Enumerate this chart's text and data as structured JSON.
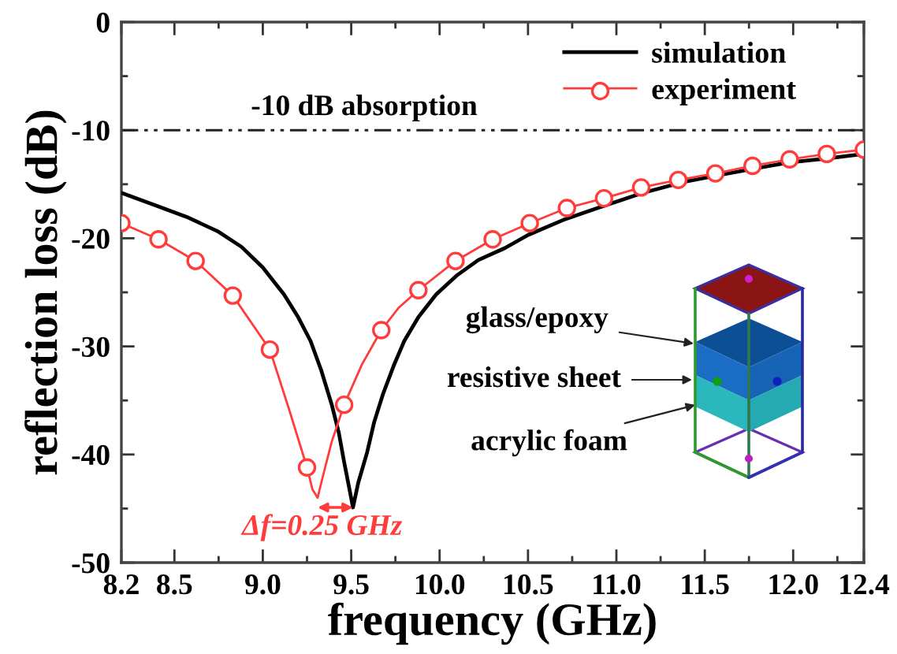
{
  "chart_data": {
    "type": "line",
    "xlabel": "frequency (GHz)",
    "ylabel": "reflection loss (dB)",
    "xlim": [
      8.2,
      12.4
    ],
    "xticks": [
      8.2,
      8.5,
      {
        "value": 8.75,
        "label": null
      },
      {
        "value": 9,
        "label": "9.0"
      },
      {
        "value": 9.25,
        "label": null
      },
      9.5,
      {
        "value": 9.75,
        "label": null
      },
      {
        "value": 10,
        "label": "10.0"
      },
      {
        "value": 10.25,
        "label": null
      },
      10.5,
      {
        "value": 10.75,
        "label": null
      },
      {
        "value": 11,
        "label": "11.0"
      },
      {
        "value": 11.25,
        "label": null
      },
      11.5,
      {
        "value": 11.75,
        "label": null
      },
      {
        "value": 12,
        "label": "12.0"
      },
      {
        "value": 12.25,
        "label": null
      },
      12.4
    ],
    "ylim": [
      -50,
      0
    ],
    "yticks": [
      -50,
      {
        "value": -45,
        "label": null
      },
      -40,
      {
        "value": -35,
        "label": null
      },
      -30,
      {
        "value": -25,
        "label": null
      },
      -20,
      {
        "value": -15,
        "label": null
      },
      -10,
      {
        "value": -5,
        "label": null
      },
      0
    ],
    "legend": "top right",
    "series": [
      {
        "name": "simulation",
        "color": "#000000",
        "x": [
          8.2,
          8.4,
          8.58,
          8.75,
          8.88,
          9.0,
          9.12,
          9.2,
          9.27,
          9.33,
          9.39,
          9.43,
          9.46,
          9.49,
          9.51,
          9.54,
          9.59,
          9.63,
          9.68,
          9.74,
          9.8,
          9.88,
          9.98,
          10.1,
          10.22,
          10.37,
          10.5,
          10.7,
          10.93,
          11.15,
          11.38,
          11.6,
          11.8,
          11.97,
          12.2,
          12.4
        ],
        "values": [
          -15.8,
          -17.0,
          -18.1,
          -19.4,
          -20.8,
          -22.7,
          -25.2,
          -27.3,
          -29.5,
          -32.2,
          -35.4,
          -38.0,
          -40.7,
          -43.2,
          -44.9,
          -42.6,
          -39.8,
          -37.0,
          -34.4,
          -31.8,
          -29.5,
          -27.3,
          -25.2,
          -23.4,
          -22.0,
          -20.9,
          -19.7,
          -18.3,
          -17.0,
          -15.8,
          -14.8,
          -14.1,
          -13.5,
          -13.0,
          -12.6,
          -12.2
        ]
      },
      {
        "name": "experiment",
        "color": "#ff3b3b",
        "x": [
          8.2,
          8.41,
          8.62,
          8.83,
          9.04,
          9.15,
          9.25,
          9.28,
          9.31,
          9.34,
          9.39,
          9.46,
          9.56,
          9.67,
          9.77,
          9.88,
          10.09,
          10.3,
          10.51,
          10.72,
          10.93,
          11.14,
          11.35,
          11.56,
          11.77,
          11.98,
          12.19,
          12.4
        ],
        "values": [
          -18.6,
          -20.1,
          -22.1,
          -25.3,
          -30.3,
          -35.9,
          -41.2,
          -43.2,
          -44.0,
          -42.0,
          -38.8,
          -35.4,
          -31.7,
          -28.5,
          -26.4,
          -24.8,
          -22.1,
          -20.1,
          -18.6,
          -17.2,
          -16.3,
          -15.3,
          -14.6,
          -14.0,
          -13.3,
          -12.7,
          -12.2,
          -11.8
        ]
      },
      {
        "type": "scatter",
        "color": "#ff3b3b",
        "marker": "circle",
        "x": [
          8.2,
          8.41,
          8.62,
          8.83,
          9.04,
          9.25,
          9.46,
          9.67,
          9.88,
          10.09,
          10.3,
          10.51,
          10.72,
          10.93,
          11.14,
          11.35,
          11.56,
          11.77,
          11.98,
          12.19,
          12.4
        ],
        "values": [
          -18.6,
          -20.1,
          -22.1,
          -25.3,
          -30.3,
          -41.2,
          -35.4,
          -28.5,
          -24.8,
          -22.1,
          -20.1,
          -18.6,
          -17.2,
          -16.3,
          -15.3,
          -14.6,
          -14.0,
          -13.3,
          -12.7,
          -12.2,
          -11.8
        ]
      }
    ],
    "ref_lines": [
      {
        "axis": "y",
        "value": -10,
        "label": "-10 dB absorption",
        "color": "#222222",
        "line_style": "dashdotdot"
      }
    ],
    "annotations": [
      "glass/epoxy",
      "resistive sheet",
      "acrylic foam",
      "Δf=0.25 GHz"
    ]
  }
}
